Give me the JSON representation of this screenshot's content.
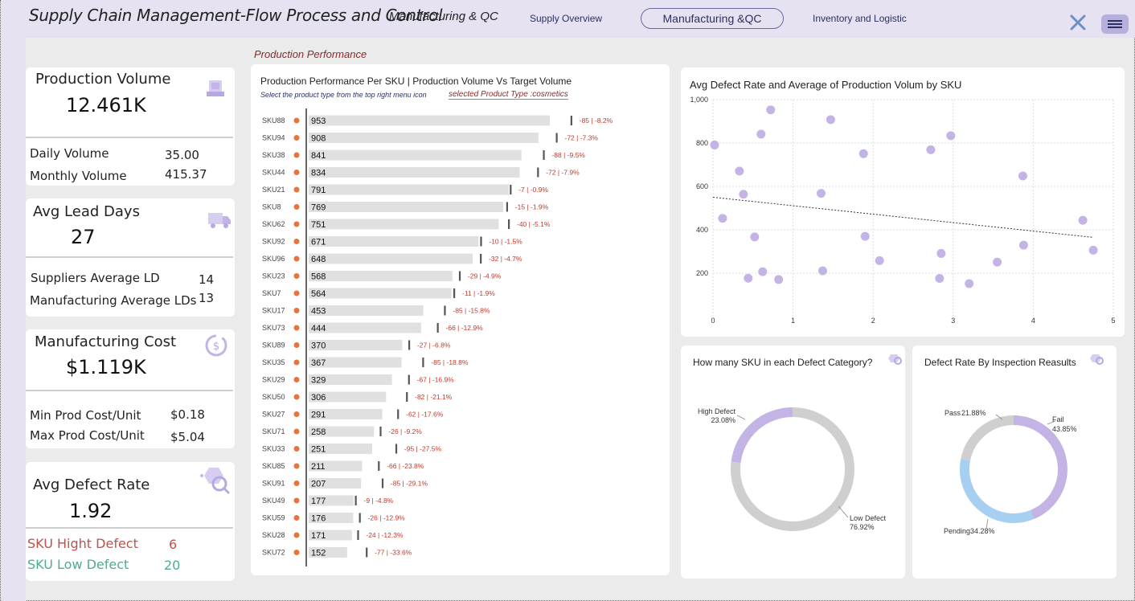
{
  "header": {
    "title": "Supply Chain Management-Flow Process and Control",
    "subtitle": "Manufacturing & QC",
    "nav": [
      "Supply Overview",
      "Manufacturing &QC",
      "Inventory and Logistic"
    ],
    "active_nav": "Manufacturing &QC"
  },
  "kpis": {
    "production": {
      "title": "Production Volume",
      "value": "12.461K",
      "rows": [
        {
          "label": "Daily Volume",
          "value": "35.00"
        },
        {
          "label": "Monthly Volume",
          "value": "415.37"
        }
      ]
    },
    "lead": {
      "title": "Avg Lead Days",
      "value": "27",
      "rows": [
        {
          "label": "Suppliers Average LD",
          "value": "14"
        },
        {
          "label": "Manufacturing  Average LDs",
          "value": "13"
        }
      ]
    },
    "cost": {
      "title": "Manufacturing Cost",
      "value": "$1.119K",
      "rows": [
        {
          "label": "Min Prod Cost/Unit",
          "value": "$0.18"
        },
        {
          "label": "Max Prod Cost/Unit",
          "value": "$5.04"
        }
      ]
    },
    "defect": {
      "title": "Avg Defect Rate",
      "value": "1.92",
      "rows": [
        {
          "label": "SKU Hight Defect",
          "value": "6",
          "color": "#c0504d"
        },
        {
          "label": "SKU Low Defect",
          "value": "20",
          "color": "#4caf87"
        }
      ]
    }
  },
  "section_label": "Production Performance",
  "chart_data": [
    {
      "type": "bar",
      "title": "Production Performance Per SKU | Production Volume Vs Target Volume",
      "instruction": "Select the product type from the top right  menu icon",
      "filter": "selected Product Type :cosmetics",
      "categories": [
        "SKU88",
        "SKU94",
        "SKU38",
        "SKU44",
        "SKU21",
        "SKU8",
        "SKU62",
        "SKU92",
        "SKU96",
        "SKU23",
        "SKU7",
        "SKU17",
        "SKU73",
        "SKU89",
        "SKU35",
        "SKU29",
        "SKU50",
        "SKU27",
        "SKU71",
        "SKU33",
        "SKU85",
        "SKU91",
        "SKU49",
        "SKU59",
        "SKU28",
        "SKU72"
      ],
      "values": [
        953,
        908,
        841,
        834,
        791,
        769,
        751,
        671,
        648,
        568,
        564,
        453,
        444,
        370,
        367,
        329,
        306,
        291,
        258,
        251,
        211,
        207,
        177,
        176,
        171,
        152
      ],
      "variance_labels": [
        "-85 | -8.2%",
        "-72 | -7.3%",
        "-88 | -9.5%",
        "-72 | -7.9%",
        "-7 | -0.9%",
        "-15 | -1.9%",
        "-40 | -5.1%",
        "-10 | -1.5%",
        "-32 | -4.7%",
        "-29 | -4.9%",
        "-11 | -1.9%",
        "-85 | -15.8%",
        "-66 | -12.9%",
        "-27 | -6.8%",
        "-85 | -18.8%",
        "-67 | -16.9%",
        "-82 | -21.1%",
        "-62 | -17.6%",
        "-26 | -9.2%",
        "-95 | -27.5%",
        "-66 | -23.8%",
        "-85 | -29.1%",
        "-9 | -4.8%",
        "-26 | -12.9%",
        "-24 | -12.3%",
        "-77 | -33.6%"
      ],
      "targets": [
        1038,
        980,
        929,
        906,
        798,
        784,
        791,
        681,
        680,
        597,
        575,
        538,
        510,
        397,
        452,
        396,
        388,
        353,
        284,
        346,
        277,
        292,
        186,
        202,
        195,
        229
      ]
    },
    {
      "type": "scatter",
      "title": "Avg Defect Rate and Average of Production Volum by SKU",
      "xlim": [
        0,
        5
      ],
      "ylim": [
        0,
        1000
      ],
      "xticks": [
        "0",
        "1",
        "2",
        "3",
        "4",
        "5"
      ],
      "yticks": [
        "200",
        "400",
        "600",
        "800",
        "1,000"
      ],
      "points": [
        [
          0.02,
          791
        ],
        [
          0.12,
          453
        ],
        [
          0.33,
          671
        ],
        [
          0.38,
          564
        ],
        [
          0.44,
          177
        ],
        [
          0.52,
          367
        ],
        [
          0.6,
          841
        ],
        [
          0.62,
          207
        ],
        [
          0.72,
          953
        ],
        [
          0.82,
          171
        ],
        [
          1.35,
          568
        ],
        [
          1.37,
          211
        ],
        [
          1.47,
          908
        ],
        [
          1.88,
          751
        ],
        [
          1.9,
          370
        ],
        [
          2.08,
          258
        ],
        [
          2.72,
          769
        ],
        [
          2.83,
          176
        ],
        [
          2.85,
          291
        ],
        [
          2.97,
          834
        ],
        [
          3.2,
          152
        ],
        [
          3.55,
          251
        ],
        [
          3.87,
          648
        ],
        [
          3.88,
          329
        ],
        [
          4.62,
          444
        ],
        [
          4.75,
          306
        ]
      ],
      "trendline": [
        [
          0,
          550
        ],
        [
          4.75,
          365
        ]
      ]
    },
    {
      "type": "pie",
      "title": "How many SKU in each Defect Category?",
      "slices": [
        {
          "label": "High Defect",
          "pct_label": "23.08%",
          "value": 23.08,
          "color": "#c4b4e6"
        },
        {
          "label": "Low Defect",
          "pct_label": "76.92%",
          "value": 76.92,
          "color": "#cfcfcf"
        }
      ]
    },
    {
      "type": "pie",
      "title": "Defect Rate By Inspection Reasults",
      "slices": [
        {
          "label": "Fail",
          "pct_label": "43.85%",
          "value": 43.85,
          "color": "#c4b4e6"
        },
        {
          "label": "Pending",
          "pct_label": "34.28%",
          "value": 34.28,
          "color": "#a6cff2"
        },
        {
          "label": "Pass",
          "pct_label": "21.88%",
          "value": 21.88,
          "color": "#cfcfcf"
        }
      ]
    }
  ],
  "colors": {
    "accent": "#c4b4e6",
    "header_bg": "#e6e2f2",
    "bar": "#e0e0e0",
    "marker": "#e8743b",
    "variance": "#c0392b",
    "scatter": "#c4b4e6",
    "link": "#2a3060"
  },
  "icons": [
    "production-icon",
    "truck-icon",
    "cost-refresh-icon",
    "defect-gear-icon",
    "close-icon",
    "menu-icon",
    "filter-icon"
  ]
}
